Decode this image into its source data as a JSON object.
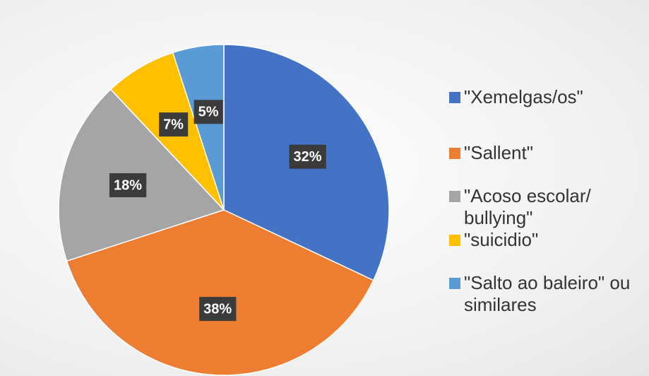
{
  "chart_data": {
    "type": "pie",
    "categories": [
      "\"Xemelgas/os\"",
      "\"Sallent\"",
      "\"Acoso escolar/ bullying\"",
      "\"suicidio\"",
      "\"Salto ao baleiro\" ou similares"
    ],
    "values": [
      32,
      38,
      18,
      7,
      5
    ],
    "value_labels": [
      "32%",
      "38%",
      "18%",
      "7%",
      "5%"
    ],
    "colors": [
      "#4472c4",
      "#ed7d31",
      "#a5a5a5",
      "#ffc000",
      "#5b9bd5"
    ],
    "legend": "right"
  }
}
